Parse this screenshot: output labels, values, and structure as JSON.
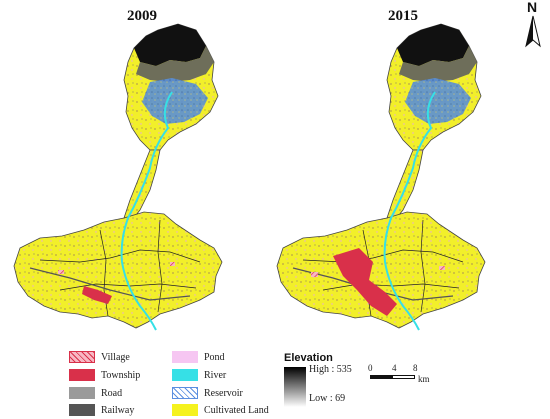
{
  "maps": [
    {
      "year": "2009"
    },
    {
      "year": "2015"
    }
  ],
  "north_label": "N",
  "legend": {
    "items": [
      {
        "label": "Village",
        "color": "#f48aa0",
        "pattern": "hatch"
      },
      {
        "label": "Township",
        "color": "#d9304a",
        "pattern": "solid"
      },
      {
        "label": "Road",
        "color": "#9a9a9a",
        "pattern": "solid"
      },
      {
        "label": "Railway",
        "color": "#555555",
        "pattern": "solid"
      },
      {
        "label": "Pond",
        "color": "#f6c6f2",
        "pattern": "solid"
      },
      {
        "label": "River",
        "color": "#36e0e6",
        "pattern": "solid"
      },
      {
        "label": "Reservoir",
        "color": "#5b8fe0",
        "pattern": "hatch"
      },
      {
        "label": "Cultivated Land",
        "color": "#f5f21e",
        "pattern": "solid"
      }
    ]
  },
  "elevation": {
    "title": "Elevation",
    "high_label": "High : 535",
    "low_label": "Low : 69"
  },
  "scale_bar": {
    "ticks": [
      "0",
      "4",
      "8"
    ],
    "unit": "km"
  },
  "colors": {
    "cultivated": "#f2ef2a",
    "forest_blue": "#5a8fd6",
    "high_terrain": "#111111",
    "township": "#d9304a",
    "river": "#36e0e6"
  }
}
